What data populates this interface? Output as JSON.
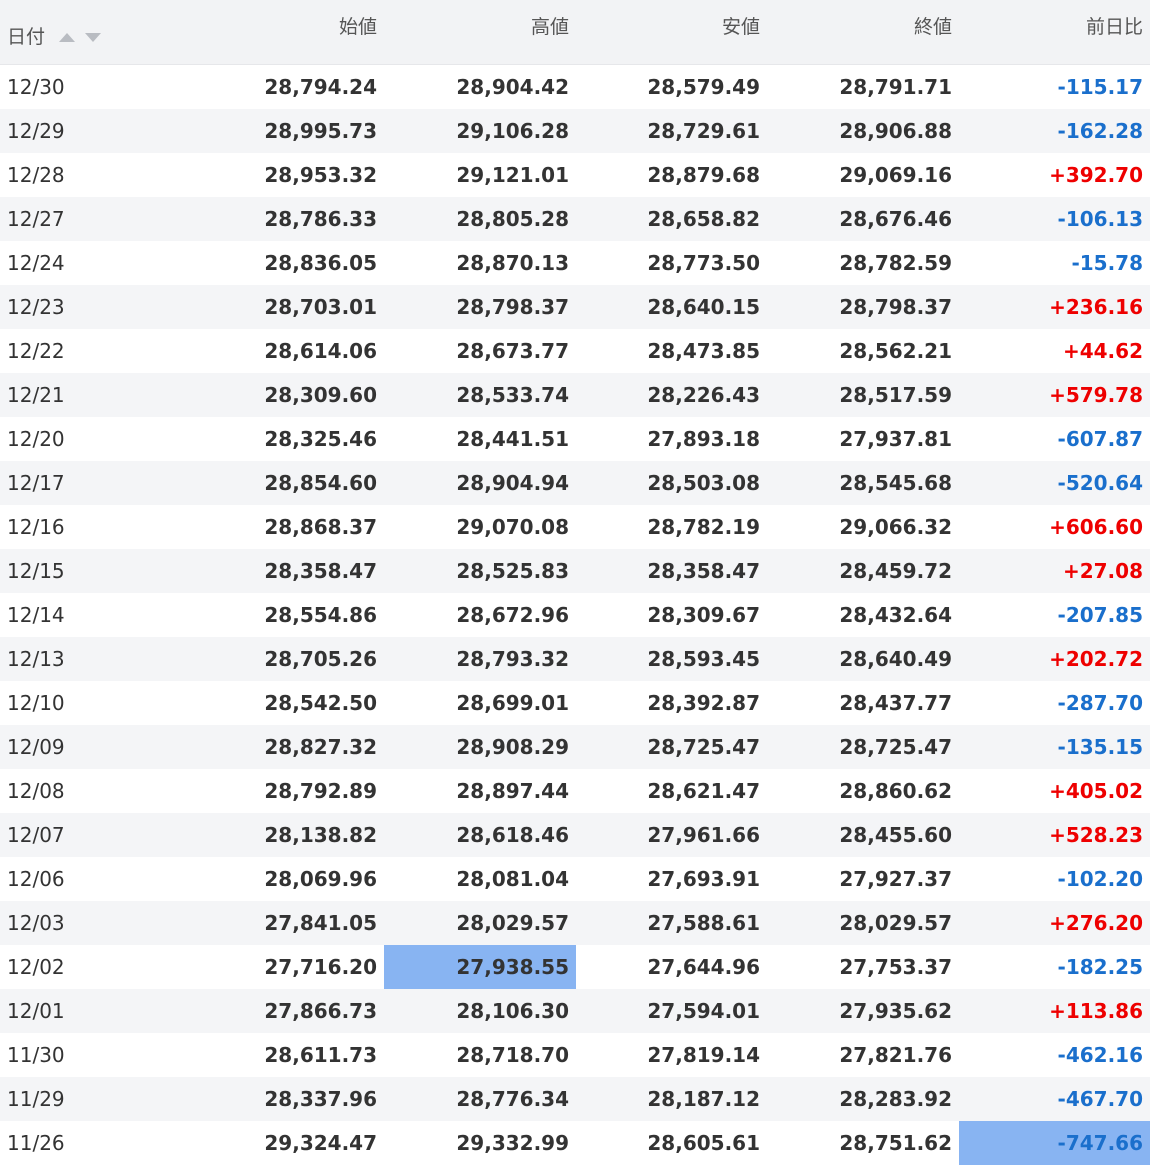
{
  "headers": {
    "date": "日付",
    "open": "始値",
    "high": "高値",
    "low": "安値",
    "close": "終値",
    "change": "前日比"
  },
  "colors": {
    "up": "#ee0000",
    "down": "#1a6fcc",
    "selected": "#88b4f2",
    "header_bg": "#f2f3f5",
    "alt_row": "#f4f5f7"
  },
  "selected_cells": [
    {
      "row_date": "12/02",
      "column": "high"
    },
    {
      "row_date": "11/26",
      "column": "change"
    }
  ],
  "rows": [
    {
      "date": "12/30",
      "open": "28,794.24",
      "high": "28,904.42",
      "low": "28,579.49",
      "close": "28,791.71",
      "change": "-115.17"
    },
    {
      "date": "12/29",
      "open": "28,995.73",
      "high": "29,106.28",
      "low": "28,729.61",
      "close": "28,906.88",
      "change": "-162.28"
    },
    {
      "date": "12/28",
      "open": "28,953.32",
      "high": "29,121.01",
      "low": "28,879.68",
      "close": "29,069.16",
      "change": "+392.70"
    },
    {
      "date": "12/27",
      "open": "28,786.33",
      "high": "28,805.28",
      "low": "28,658.82",
      "close": "28,676.46",
      "change": "-106.13"
    },
    {
      "date": "12/24",
      "open": "28,836.05",
      "high": "28,870.13",
      "low": "28,773.50",
      "close": "28,782.59",
      "change": "-15.78"
    },
    {
      "date": "12/23",
      "open": "28,703.01",
      "high": "28,798.37",
      "low": "28,640.15",
      "close": "28,798.37",
      "change": "+236.16"
    },
    {
      "date": "12/22",
      "open": "28,614.06",
      "high": "28,673.77",
      "low": "28,473.85",
      "close": "28,562.21",
      "change": "+44.62"
    },
    {
      "date": "12/21",
      "open": "28,309.60",
      "high": "28,533.74",
      "low": "28,226.43",
      "close": "28,517.59",
      "change": "+579.78"
    },
    {
      "date": "12/20",
      "open": "28,325.46",
      "high": "28,441.51",
      "low": "27,893.18",
      "close": "27,937.81",
      "change": "-607.87"
    },
    {
      "date": "12/17",
      "open": "28,854.60",
      "high": "28,904.94",
      "low": "28,503.08",
      "close": "28,545.68",
      "change": "-520.64"
    },
    {
      "date": "12/16",
      "open": "28,868.37",
      "high": "29,070.08",
      "low": "28,782.19",
      "close": "29,066.32",
      "change": "+606.60"
    },
    {
      "date": "12/15",
      "open": "28,358.47",
      "high": "28,525.83",
      "low": "28,358.47",
      "close": "28,459.72",
      "change": "+27.08"
    },
    {
      "date": "12/14",
      "open": "28,554.86",
      "high": "28,672.96",
      "low": "28,309.67",
      "close": "28,432.64",
      "change": "-207.85"
    },
    {
      "date": "12/13",
      "open": "28,705.26",
      "high": "28,793.32",
      "low": "28,593.45",
      "close": "28,640.49",
      "change": "+202.72"
    },
    {
      "date": "12/10",
      "open": "28,542.50",
      "high": "28,699.01",
      "low": "28,392.87",
      "close": "28,437.77",
      "change": "-287.70"
    },
    {
      "date": "12/09",
      "open": "28,827.32",
      "high": "28,908.29",
      "low": "28,725.47",
      "close": "28,725.47",
      "change": "-135.15"
    },
    {
      "date": "12/08",
      "open": "28,792.89",
      "high": "28,897.44",
      "low": "28,621.47",
      "close": "28,860.62",
      "change": "+405.02"
    },
    {
      "date": "12/07",
      "open": "28,138.82",
      "high": "28,618.46",
      "low": "27,961.66",
      "close": "28,455.60",
      "change": "+528.23"
    },
    {
      "date": "12/06",
      "open": "28,069.96",
      "high": "28,081.04",
      "low": "27,693.91",
      "close": "27,927.37",
      "change": "-102.20"
    },
    {
      "date": "12/03",
      "open": "27,841.05",
      "high": "28,029.57",
      "low": "27,588.61",
      "close": "28,029.57",
      "change": "+276.20"
    },
    {
      "date": "12/02",
      "open": "27,716.20",
      "high": "27,938.55",
      "low": "27,644.96",
      "close": "27,753.37",
      "change": "-182.25"
    },
    {
      "date": "12/01",
      "open": "27,866.73",
      "high": "28,106.30",
      "low": "27,594.01",
      "close": "27,935.62",
      "change": "+113.86"
    },
    {
      "date": "11/30",
      "open": "28,611.73",
      "high": "28,718.70",
      "low": "27,819.14",
      "close": "27,821.76",
      "change": "-462.16"
    },
    {
      "date": "11/29",
      "open": "28,337.96",
      "high": "28,776.34",
      "low": "28,187.12",
      "close": "28,283.92",
      "change": "-467.70"
    },
    {
      "date": "11/26",
      "open": "29,324.47",
      "high": "29,332.99",
      "low": "28,605.61",
      "close": "28,751.62",
      "change": "-747.66"
    }
  ]
}
